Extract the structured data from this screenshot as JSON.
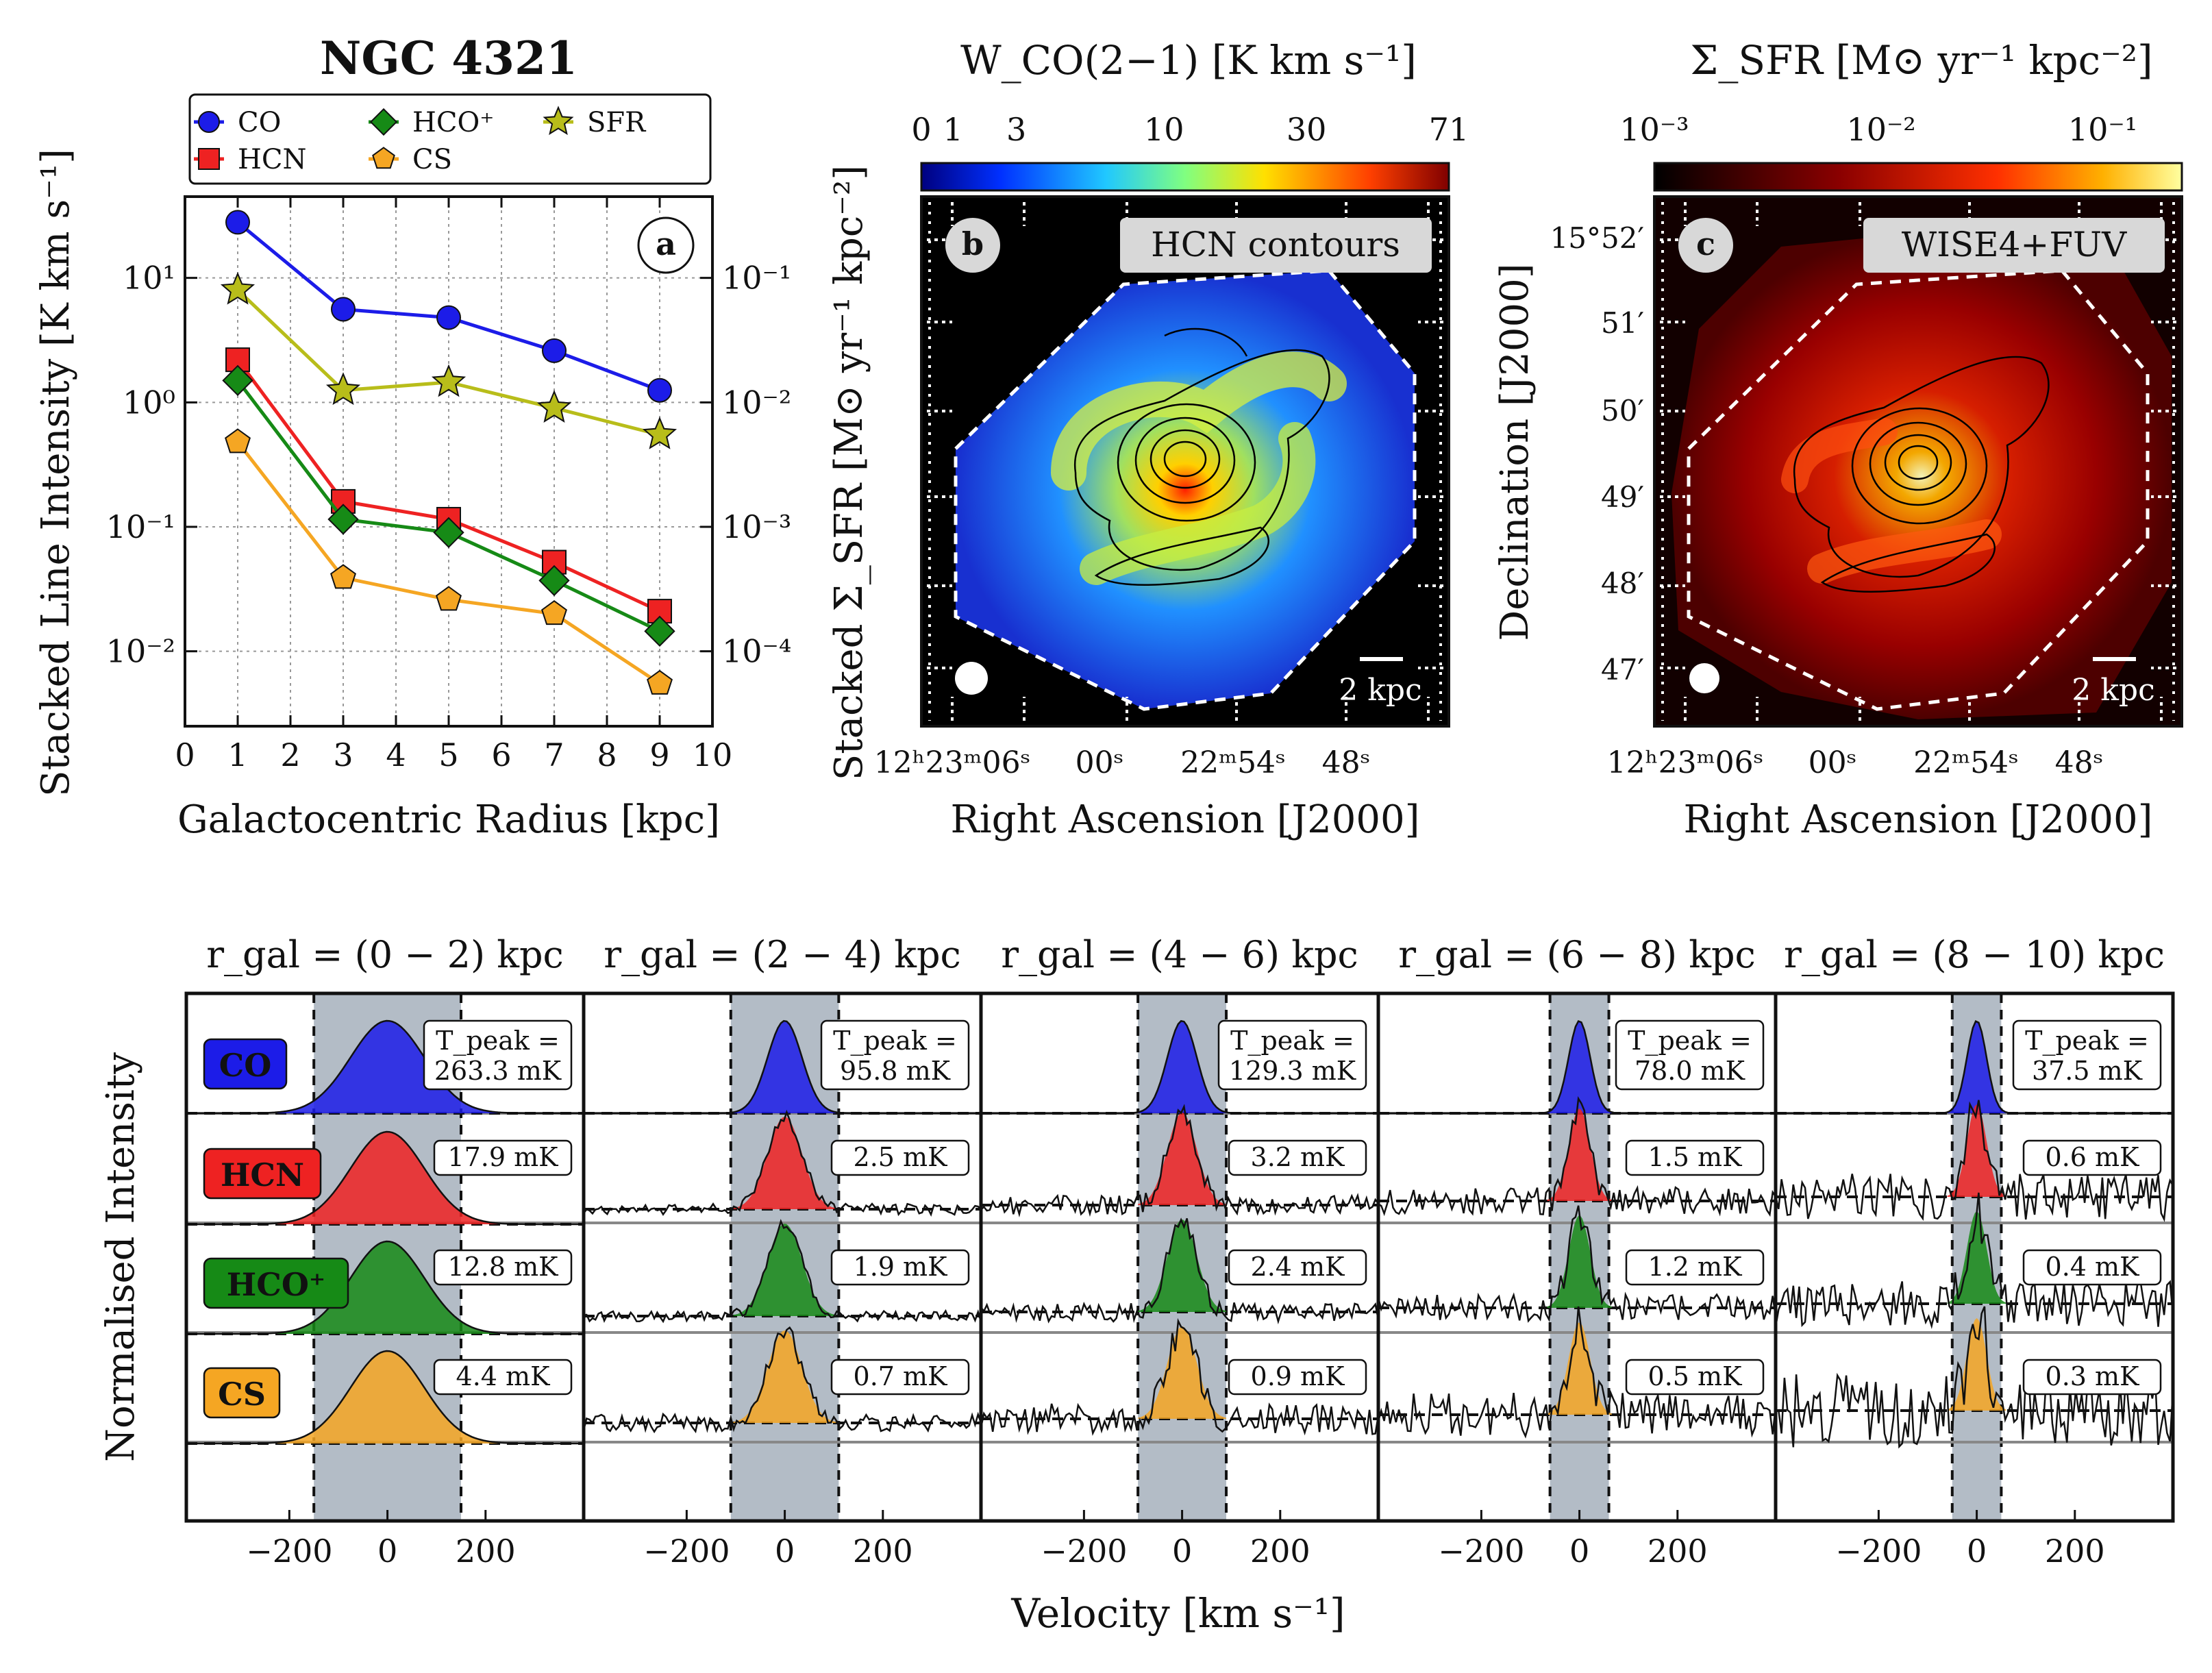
{
  "panel_a": {
    "title": "NGC 4321",
    "label": "a",
    "xlabel": "Galactocentric Radius [kpc]",
    "ylabel": "Stacked Line Intensity [K km s⁻¹]",
    "ylabel_right": "Stacked Σ_SFR [M⊙ yr⁻¹ kpc⁻²]",
    "xticks": [
      "0",
      "1",
      "2",
      "3",
      "4",
      "5",
      "6",
      "7",
      "8",
      "9",
      "10"
    ],
    "yticks_left": [
      "10⁻²",
      "10⁰",
      "10¹",
      "10⁻¹"
    ],
    "yticks_right": [
      "10⁻¹",
      "10⁻²",
      "10⁻³",
      "10⁻⁴"
    ],
    "legend": [
      "CO",
      "HCN",
      "HCO⁺",
      "CS",
      "SFR"
    ]
  },
  "panel_b": {
    "label": "b",
    "colorbar_title": "W_CO(2−1) [K km s⁻¹]",
    "colorbar_ticks": [
      "0",
      "1",
      "3",
      "10",
      "30",
      "71"
    ],
    "overlay_label": "HCN contours",
    "scalebar": "2 kpc",
    "xlabel": "Right Ascension [J2000]",
    "ra_ticks": [
      "12ʰ23ᵐ06ˢ",
      "00ˢ",
      "22ᵐ54ˢ",
      "48ˢ"
    ]
  },
  "panel_c": {
    "label": "c",
    "colorbar_title": "Σ_SFR [M⊙ yr⁻¹ kpc⁻²]",
    "colorbar_ticks": [
      "10⁻³",
      "10⁻²",
      "10⁻¹"
    ],
    "overlay_label": "WISE4+FUV",
    "scalebar": "2 kpc",
    "xlabel": "Right Ascension [J2000]",
    "ylabel": "Declination [J2000]",
    "ra_ticks": [
      "12ʰ23ᵐ06ˢ",
      "00ˢ",
      "22ᵐ54ˢ",
      "48ˢ"
    ],
    "dec_ticks": [
      "15°52′",
      "51′",
      "50′",
      "49′",
      "48′",
      "47′"
    ]
  },
  "spectra": {
    "ylabel": "Normalised Intensity",
    "xlabel": "Velocity [km s⁻¹]",
    "xticks": [
      "−200",
      "0",
      "200"
    ],
    "line_labels": [
      "CO",
      "HCN",
      "HCO⁺",
      "CS"
    ],
    "tpeak_prefix": "T_peak =",
    "bins": [
      {
        "title": "r_gal = (0 − 2) kpc",
        "window": 150,
        "co": "263.3 mK",
        "hcn": "17.9 mK",
        "hcop": "12.8 mK",
        "cs": "4.4 mK"
      },
      {
        "title": "r_gal = (2 − 4) kpc",
        "window": 110,
        "co": "95.8 mK",
        "hcn": "2.5 mK",
        "hcop": "1.9 mK",
        "cs": "0.7 mK"
      },
      {
        "title": "r_gal = (4 − 6) kpc",
        "window": 90,
        "co": "129.3 mK",
        "hcn": "3.2 mK",
        "hcop": "2.4 mK",
        "cs": "0.9 mK"
      },
      {
        "title": "r_gal = (6 − 8) kpc",
        "window": 60,
        "co": "78.0 mK",
        "hcn": "1.5 mK",
        "hcop": "1.2 mK",
        "cs": "0.5 mK"
      },
      {
        "title": "r_gal = (8 − 10) kpc",
        "window": 50,
        "co": "37.5 mK",
        "hcn": "0.6 mK",
        "hcop": "0.4 mK",
        "cs": "0.3 mK"
      }
    ]
  },
  "colors": {
    "co": "#1c1ce8",
    "hcn": "#ee2222",
    "hcop": "#168a16",
    "cs": "#f5a623",
    "sfr": "#b8bd1a",
    "window": "#b3bcc6"
  },
  "chart_data": {
    "type": "line",
    "x": [
      1,
      3,
      5,
      7,
      9
    ],
    "xlabel": "Galactocentric Radius [kpc]",
    "ylabel": "Stacked Line Intensity [K km s⁻¹]",
    "yscale": "log",
    "xlim": [
      0,
      10
    ],
    "ylim": [
      0.0025,
      45
    ],
    "y2label": "Stacked Σ_SFR [M⊙ yr⁻¹ kpc⁻²]",
    "y2lim": [
      2.5e-05,
      0.45
    ],
    "grid": true,
    "legend_position": "top",
    "series": [
      {
        "name": "CO",
        "values": [
          28,
          5.6,
          4.8,
          2.6,
          1.25
        ]
      },
      {
        "name": "HCN",
        "values": [
          2.2,
          0.16,
          0.115,
          0.052,
          0.021
        ]
      },
      {
        "name": "HCO⁺",
        "values": [
          1.5,
          0.115,
          0.09,
          0.037,
          0.0145
        ]
      },
      {
        "name": "CS",
        "values": [
          0.48,
          0.039,
          0.026,
          0.02,
          0.0055
        ]
      },
      {
        "name": "SFR",
        "axis": "right",
        "values": [
          0.08,
          0.0125,
          0.0145,
          0.009,
          0.0055
        ]
      }
    ]
  }
}
